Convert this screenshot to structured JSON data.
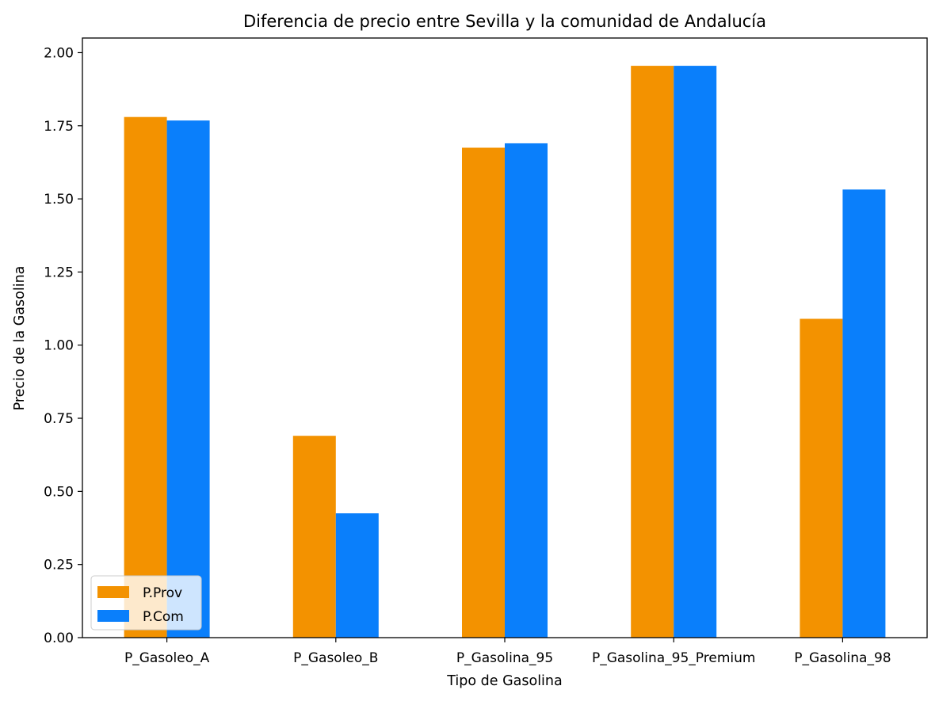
{
  "chart_data": {
    "type": "bar",
    "title": "Diferencia de precio entre Sevilla y la comunidad de Andalucía",
    "xlabel": "Tipo de Gasolina",
    "ylabel": "Precio de la Gasolina",
    "categories": [
      "P_Gasoleo_A",
      "P_Gasoleo_B",
      "P_Gasolina_95",
      "P_Gasolina_95_Premium",
      "P_Gasolina_98"
    ],
    "series": [
      {
        "name": "P.Prov",
        "color": "#f39200",
        "values": [
          1.78,
          0.69,
          1.675,
          1.955,
          1.09
        ]
      },
      {
        "name": "P.Com",
        "color": "#0a7ffb",
        "values": [
          1.768,
          0.425,
          1.69,
          1.955,
          1.532
        ]
      }
    ],
    "ylim": [
      0,
      2.05
    ],
    "yticks": [
      "0.00",
      "0.25",
      "0.50",
      "0.75",
      "1.00",
      "1.25",
      "1.50",
      "1.75",
      "2.00"
    ],
    "grid": false,
    "legend_position": "lower-left"
  }
}
